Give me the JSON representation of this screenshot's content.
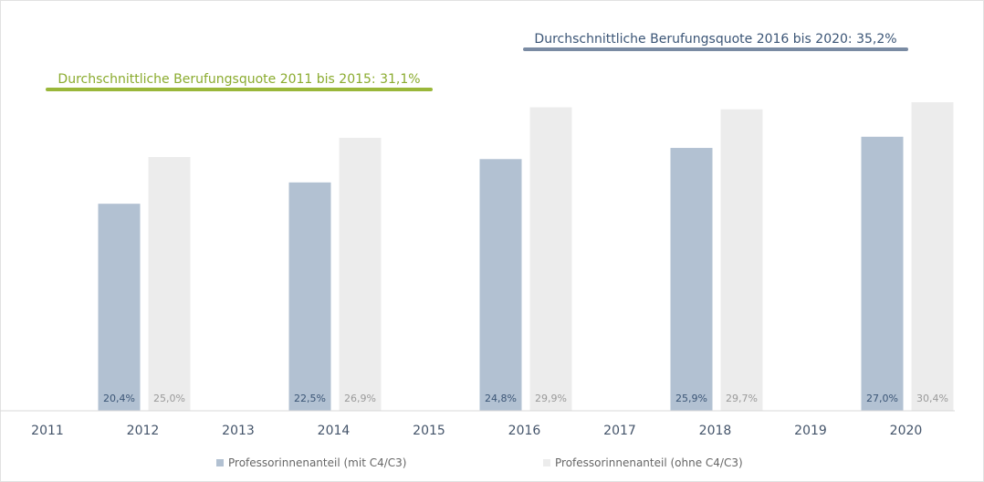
{
  "chart_data": {
    "type": "bar",
    "x": [
      "2011",
      "2012",
      "2013",
      "2014",
      "2015",
      "2016",
      "2017",
      "2018",
      "2019",
      "2020"
    ],
    "series": [
      {
        "name": "Professorinnenanteil (mit C4/C3)",
        "color": "#b2c1d2",
        "label_color": "#3b5576",
        "values": [
          null,
          20.4,
          null,
          22.5,
          null,
          24.8,
          null,
          25.9,
          null,
          27.0
        ],
        "labels": [
          null,
          "20,4%",
          null,
          "22,5%",
          null,
          "24,8%",
          null,
          "25,9%",
          null,
          "27,0%"
        ]
      },
      {
        "name": "Professorinnenanteil (ohne C4/C3)",
        "color": "#ececec",
        "label_color": "#9a9a9a",
        "values": [
          null,
          25.0,
          null,
          26.9,
          null,
          29.9,
          null,
          29.7,
          null,
          30.4
        ],
        "labels": [
          null,
          "25,0%",
          null,
          "26,9%",
          null,
          "29,9%",
          null,
          "29,7%",
          null,
          "30,4%"
        ]
      }
    ],
    "ylim": [
      0,
      34.0
    ],
    "annotations": [
      {
        "text": "Durchschnittliche Berufungsquote 2011 bis 2015: 31,1%",
        "value": 31.1,
        "span": [
          "2011",
          "2015"
        ],
        "color": "#9ab73a",
        "text_color": "#8aab2e"
      },
      {
        "text": "Durchschnittliche Berufungsquote 2016 bis 2020: 35,2%",
        "value": 35.2,
        "span": [
          "2016",
          "2020"
        ],
        "color": "#7a8ba3",
        "text_color": "#3b5576"
      }
    ],
    "grid": false,
    "legend_position": "bottom"
  }
}
